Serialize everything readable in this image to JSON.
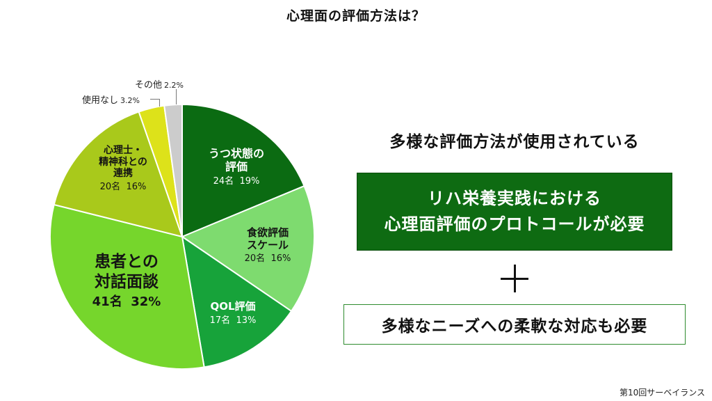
{
  "title": "心理面の評価方法は？",
  "chart_data": {
    "type": "pie",
    "title": "心理面の評価方法は？",
    "slices": [
      {
        "lines": [
          "うつ状態の",
          "評価"
        ],
        "count": 24,
        "count_text": "24名",
        "percent": 19,
        "percent_text": "19%",
        "color": "#0b6b12"
      },
      {
        "lines": [
          "食欲評価",
          "スケール"
        ],
        "count": 20,
        "count_text": "20名",
        "percent": 16,
        "percent_text": "16%",
        "color": "#7edb6f"
      },
      {
        "lines": [
          "QOL評価"
        ],
        "count": 17,
        "count_text": "17名",
        "percent": 13,
        "percent_text": "13%",
        "color": "#17a33a"
      },
      {
        "lines": [
          "患者との",
          "対話面談"
        ],
        "count": 41,
        "count_text": "41名",
        "percent": 32,
        "percent_text": "32%",
        "color": "#76d62c"
      },
      {
        "lines": [
          "心理士・",
          "精神科との",
          "連携"
        ],
        "count": 20,
        "count_text": "20名",
        "percent": 16,
        "percent_text": "16%",
        "color": "#a9c91b"
      },
      {
        "lines": [
          "使用なし"
        ],
        "percent": 3.2,
        "percent_text": "3.2%",
        "color": "#dde21a"
      },
      {
        "lines": [
          "その他"
        ],
        "percent": 2.2,
        "percent_text": "2.2%",
        "color": "#cccccc"
      }
    ]
  },
  "right_panel": {
    "headline": "多様な評価方法が使用されている",
    "green_box_lines": [
      "リハ栄養実践における",
      "心理面評価のプロトコールが必要"
    ],
    "outline_box": "多様なニーズへの柔軟な対応も必要"
  },
  "footer": "第10回サーベイランス"
}
